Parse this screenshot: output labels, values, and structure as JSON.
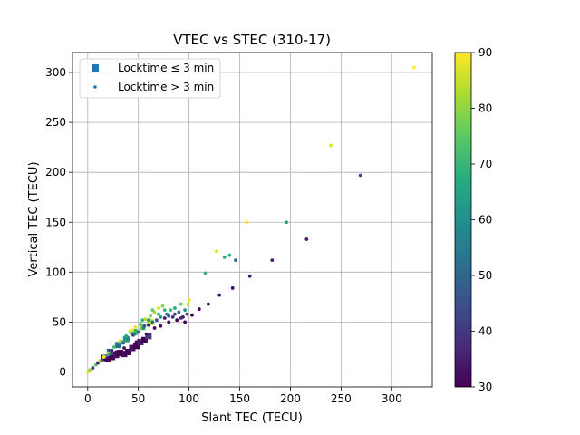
{
  "chart_data": {
    "type": "scatter",
    "title": "VTEC vs STEC (310-17)",
    "xlabel": "Slant TEC (TECU)",
    "ylabel": "Vertical TEC (TECU)",
    "xlim": [
      -15,
      340
    ],
    "ylim": [
      -15,
      320
    ],
    "xticks": [
      0,
      50,
      100,
      150,
      200,
      250,
      300
    ],
    "yticks": [
      0,
      50,
      100,
      150,
      200,
      250,
      300
    ],
    "grid": true,
    "legend_position": "top-left",
    "colormap": "viridis",
    "colorbar": {
      "min": 30,
      "max": 90,
      "ticks": [
        30,
        40,
        50,
        60,
        70,
        80,
        90
      ]
    },
    "series": [
      {
        "name": "Locktime ≤ 3 min",
        "marker": "square",
        "color": "#1f77b4",
        "points": [
          {
            "x": 16,
            "y": 14,
            "c": 30
          },
          {
            "x": 20,
            "y": 13,
            "c": 30
          },
          {
            "x": 24,
            "y": 15,
            "c": 30
          },
          {
            "x": 28,
            "y": 17,
            "c": 32
          },
          {
            "x": 32,
            "y": 19,
            "c": 30
          },
          {
            "x": 36,
            "y": 18,
            "c": 31
          },
          {
            "x": 40,
            "y": 20,
            "c": 30
          },
          {
            "x": 44,
            "y": 24,
            "c": 33
          },
          {
            "x": 48,
            "y": 26,
            "c": 30
          },
          {
            "x": 52,
            "y": 30,
            "c": 35
          },
          {
            "x": 56,
            "y": 32,
            "c": 30
          },
          {
            "x": 60,
            "y": 36,
            "c": 40
          },
          {
            "x": 22,
            "y": 20,
            "c": 45
          },
          {
            "x": 30,
            "y": 27,
            "c": 55
          },
          {
            "x": 38,
            "y": 33,
            "c": 62
          },
          {
            "x": 46,
            "y": 40,
            "c": 70
          },
          {
            "x": 54,
            "y": 45,
            "c": 78
          },
          {
            "x": 62,
            "y": 50,
            "c": 85
          }
        ]
      },
      {
        "name": "Locktime > 3 min",
        "marker": "circle",
        "color": "#1f77b4",
        "points": [
          {
            "x": 322,
            "y": 305,
            "c": 90
          },
          {
            "x": 240,
            "y": 227,
            "c": 87
          },
          {
            "x": 269,
            "y": 197,
            "c": 45
          },
          {
            "x": 196,
            "y": 150,
            "c": 62
          },
          {
            "x": 157,
            "y": 150,
            "c": 89
          },
          {
            "x": 216,
            "y": 133,
            "c": 35
          },
          {
            "x": 127,
            "y": 121,
            "c": 88
          },
          {
            "x": 140,
            "y": 117,
            "c": 68
          },
          {
            "x": 135,
            "y": 115,
            "c": 66
          },
          {
            "x": 146,
            "y": 112,
            "c": 50
          },
          {
            "x": 182,
            "y": 112,
            "c": 35
          },
          {
            "x": 116,
            "y": 99,
            "c": 70
          },
          {
            "x": 160,
            "y": 96,
            "c": 34
          },
          {
            "x": 143,
            "y": 84,
            "c": 32
          },
          {
            "x": 130,
            "y": 77,
            "c": 33
          },
          {
            "x": 119,
            "y": 68,
            "c": 31
          },
          {
            "x": 110,
            "y": 63,
            "c": 30
          },
          {
            "x": 103,
            "y": 57,
            "c": 31
          },
          {
            "x": 0,
            "y": 0,
            "c": 88
          },
          {
            "x": 2,
            "y": 2,
            "c": 80
          },
          {
            "x": 5,
            "y": 4,
            "c": 40
          },
          {
            "x": 8,
            "y": 7,
            "c": 75
          },
          {
            "x": 10,
            "y": 9,
            "c": 36
          },
          {
            "x": 12,
            "y": 11,
            "c": 85
          },
          {
            "x": 14,
            "y": 12,
            "c": 45
          },
          {
            "x": 18,
            "y": 16,
            "c": 60
          },
          {
            "x": 20,
            "y": 19,
            "c": 82
          },
          {
            "x": 24,
            "y": 21,
            "c": 38
          },
          {
            "x": 26,
            "y": 25,
            "c": 72
          },
          {
            "x": 30,
            "y": 26,
            "c": 50
          },
          {
            "x": 32,
            "y": 31,
            "c": 86
          },
          {
            "x": 35,
            "y": 29,
            "c": 42
          },
          {
            "x": 38,
            "y": 36,
            "c": 66
          },
          {
            "x": 40,
            "y": 33,
            "c": 55
          },
          {
            "x": 42,
            "y": 40,
            "c": 80
          },
          {
            "x": 45,
            "y": 37,
            "c": 35
          },
          {
            "x": 47,
            "y": 45,
            "c": 88
          },
          {
            "x": 50,
            "y": 40,
            "c": 48
          },
          {
            "x": 52,
            "y": 48,
            "c": 74
          },
          {
            "x": 55,
            "y": 44,
            "c": 58
          },
          {
            "x": 57,
            "y": 53,
            "c": 84
          },
          {
            "x": 60,
            "y": 47,
            "c": 36
          },
          {
            "x": 62,
            "y": 56,
            "c": 78
          },
          {
            "x": 64,
            "y": 50,
            "c": 52
          },
          {
            "x": 66,
            "y": 60,
            "c": 82
          },
          {
            "x": 68,
            "y": 52,
            "c": 44
          },
          {
            "x": 70,
            "y": 64,
            "c": 86
          },
          {
            "x": 72,
            "y": 55,
            "c": 62
          },
          {
            "x": 74,
            "y": 66,
            "c": 80
          },
          {
            "x": 76,
            "y": 54,
            "c": 34
          },
          {
            "x": 78,
            "y": 58,
            "c": 56
          },
          {
            "x": 80,
            "y": 50,
            "c": 31
          },
          {
            "x": 84,
            "y": 55,
            "c": 38
          },
          {
            "x": 88,
            "y": 52,
            "c": 30
          },
          {
            "x": 90,
            "y": 60,
            "c": 48
          },
          {
            "x": 94,
            "y": 55,
            "c": 32
          },
          {
            "x": 96,
            "y": 62,
            "c": 60
          },
          {
            "x": 99,
            "y": 68,
            "c": 84
          },
          {
            "x": 100,
            "y": 72,
            "c": 88
          },
          {
            "x": 66,
            "y": 44,
            "c": 30
          },
          {
            "x": 72,
            "y": 46,
            "c": 31
          },
          {
            "x": 58,
            "y": 38,
            "c": 32
          },
          {
            "x": 48,
            "y": 30,
            "c": 30
          },
          {
            "x": 36,
            "y": 24,
            "c": 33
          },
          {
            "x": 28,
            "y": 20,
            "c": 31
          },
          {
            "x": 44,
            "y": 42,
            "c": 90
          },
          {
            "x": 54,
            "y": 52,
            "c": 70
          },
          {
            "x": 64,
            "y": 62,
            "c": 76
          },
          {
            "x": 70,
            "y": 58,
            "c": 68
          },
          {
            "x": 82,
            "y": 62,
            "c": 72
          },
          {
            "x": 86,
            "y": 64,
            "c": 66
          },
          {
            "x": 92,
            "y": 68,
            "c": 76
          },
          {
            "x": 16,
            "y": 15,
            "c": 90
          },
          {
            "x": 22,
            "y": 18,
            "c": 58
          },
          {
            "x": 34,
            "y": 30,
            "c": 64
          },
          {
            "x": 46,
            "y": 38,
            "c": 54
          },
          {
            "x": 56,
            "y": 46,
            "c": 46
          },
          {
            "x": 60,
            "y": 52,
            "c": 64
          },
          {
            "x": 76,
            "y": 62,
            "c": 70
          },
          {
            "x": 80,
            "y": 56,
            "c": 44
          },
          {
            "x": 86,
            "y": 58,
            "c": 40
          },
          {
            "x": 92,
            "y": 54,
            "c": 36
          },
          {
            "x": 96,
            "y": 50,
            "c": 30
          },
          {
            "x": 98,
            "y": 58,
            "c": 42
          }
        ]
      }
    ]
  }
}
